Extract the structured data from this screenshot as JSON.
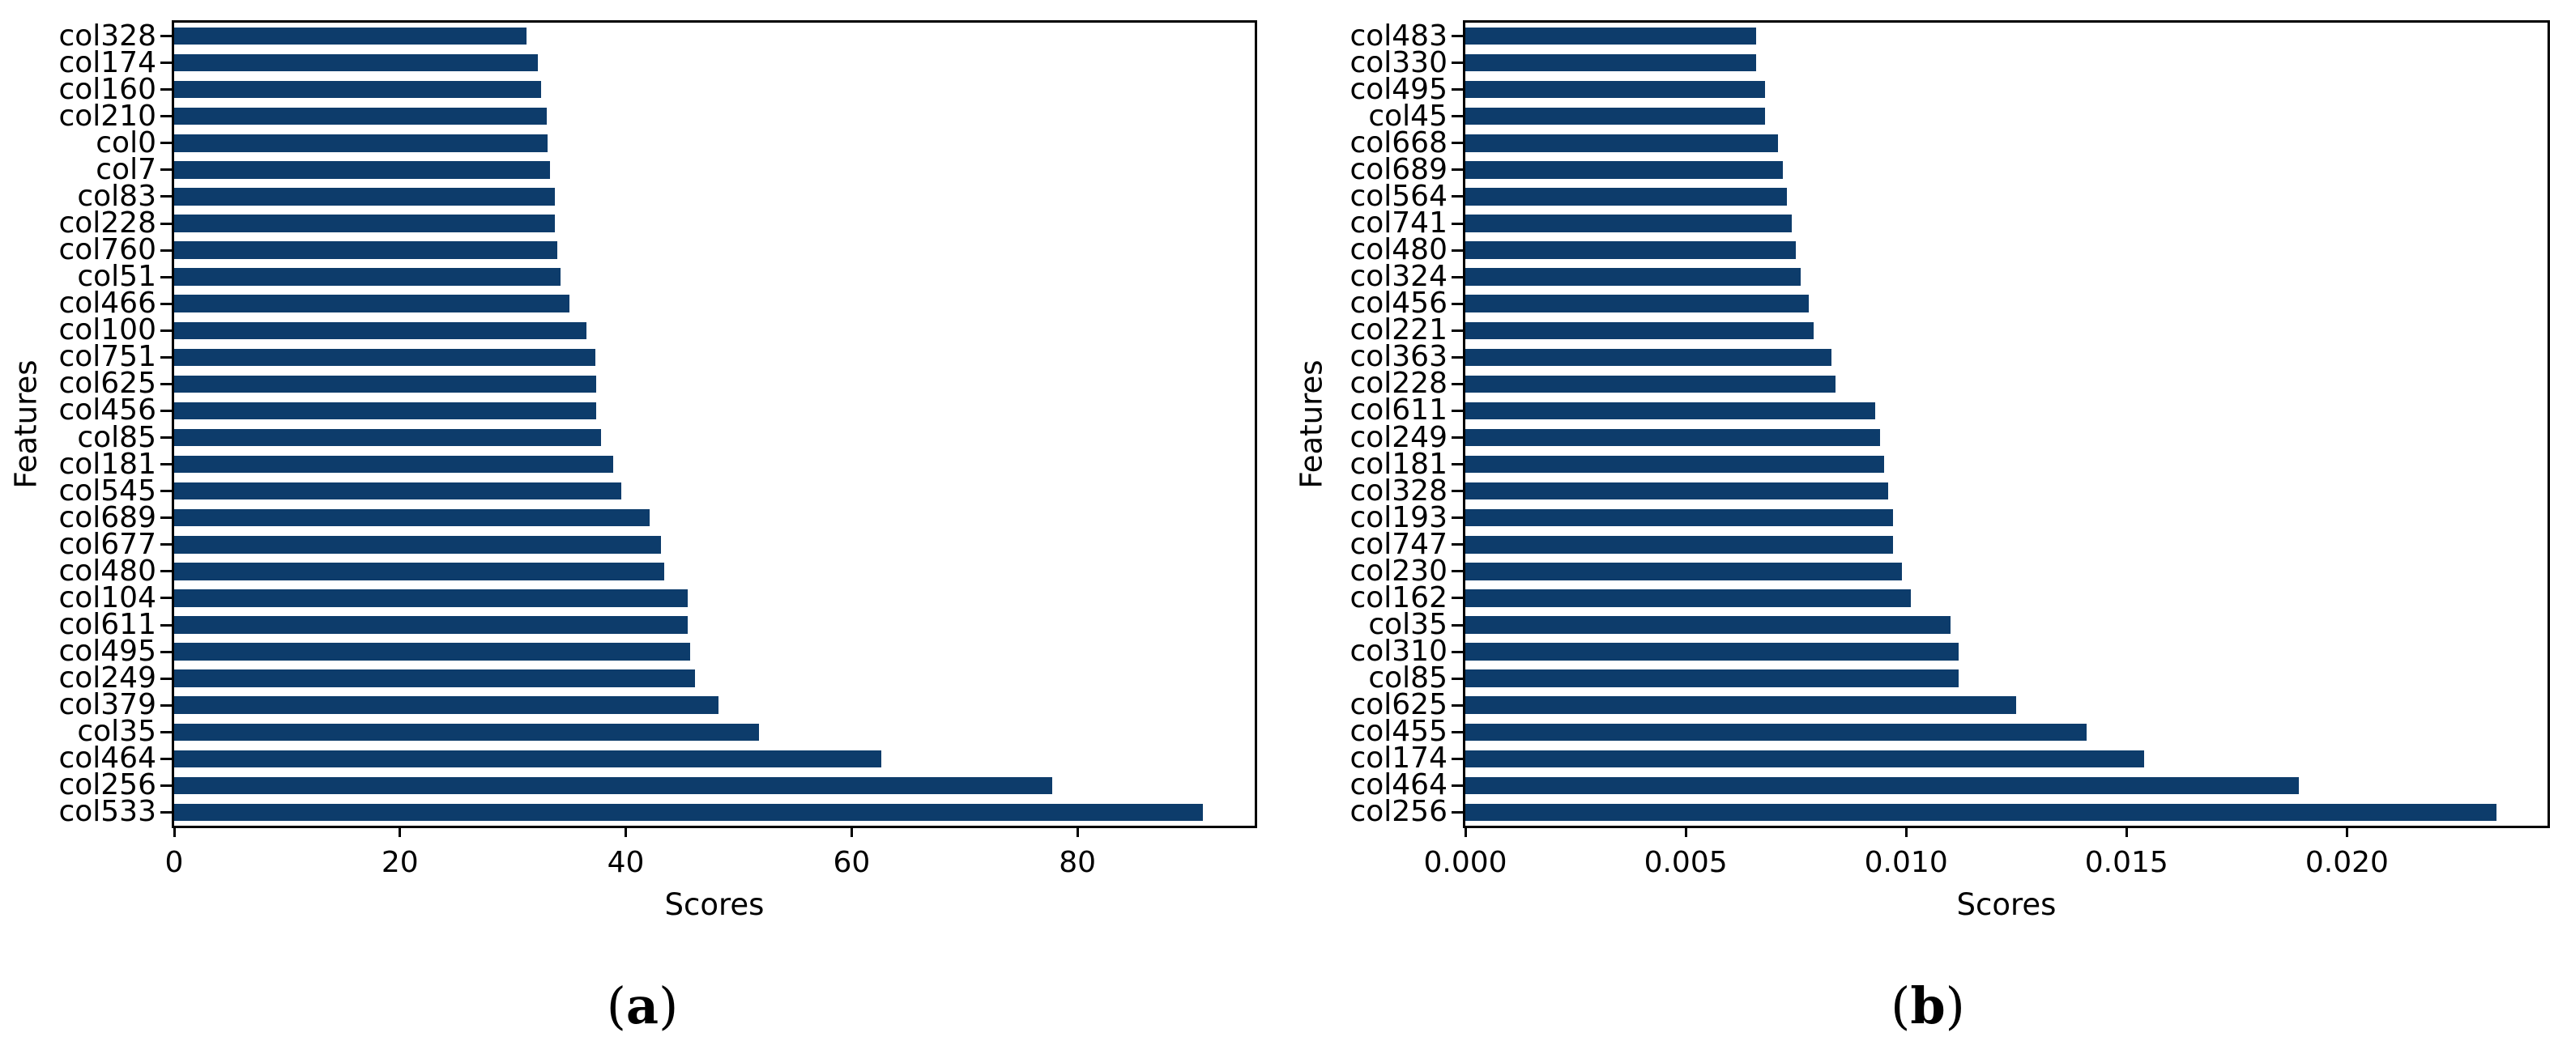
{
  "figure": {
    "background": "#ffffff",
    "bar_color": "#0d3c6b",
    "axis_color": "#000000"
  },
  "chart_data": [
    {
      "type": "bar",
      "orientation": "horizontal",
      "panel": "a",
      "caption": "(a)",
      "xlabel": "Scores",
      "ylabel": "Features",
      "grid": false,
      "legend_position": "none",
      "xlim": [
        0,
        95.7
      ],
      "xticks": [
        0,
        20,
        40,
        60,
        80
      ],
      "xtick_labels": [
        "0",
        "20",
        "40",
        "60",
        "80"
      ],
      "categories": [
        "col328",
        "col174",
        "col160",
        "col210",
        "col0",
        "col7",
        "col83",
        "col228",
        "col760",
        "col51",
        "col466",
        "col100",
        "col751",
        "col625",
        "col456",
        "col85",
        "col181",
        "col545",
        "col689",
        "col677",
        "col480",
        "col104",
        "col611",
        "col495",
        "col249",
        "col379",
        "col35",
        "col464",
        "col256",
        "col533"
      ],
      "values": [
        31.2,
        32.2,
        32.5,
        33.0,
        33.1,
        33.3,
        33.7,
        33.7,
        33.9,
        34.2,
        35.0,
        36.5,
        37.3,
        37.4,
        37.4,
        37.8,
        38.9,
        39.6,
        42.1,
        43.1,
        43.4,
        45.5,
        45.5,
        45.7,
        46.1,
        48.2,
        51.8,
        62.6,
        77.8,
        91.1
      ]
    },
    {
      "type": "bar",
      "orientation": "horizontal",
      "panel": "b",
      "caption": "(b)",
      "xlabel": "Scores",
      "ylabel": "Features",
      "grid": false,
      "legend_position": "none",
      "xlim": [
        0,
        0.02455
      ],
      "xticks": [
        0,
        0.005,
        0.01,
        0.015,
        0.02
      ],
      "xtick_labels": [
        "0.000",
        "0.005",
        "0.010",
        "0.015",
        "0.020"
      ],
      "categories": [
        "col483",
        "col330",
        "col495",
        "col45",
        "col668",
        "col689",
        "col564",
        "col741",
        "col480",
        "col324",
        "col456",
        "col221",
        "col363",
        "col228",
        "col611",
        "col249",
        "col181",
        "col328",
        "col193",
        "col747",
        "col230",
        "col162",
        "col35",
        "col310",
        "col85",
        "col625",
        "col455",
        "col174",
        "col464",
        "col256"
      ],
      "values": [
        0.0066,
        0.0066,
        0.0068,
        0.0068,
        0.0071,
        0.0072,
        0.0073,
        0.0074,
        0.0075,
        0.0076,
        0.0078,
        0.0079,
        0.0083,
        0.0084,
        0.0093,
        0.0094,
        0.0095,
        0.0096,
        0.0097,
        0.0097,
        0.0099,
        0.0101,
        0.011,
        0.0112,
        0.0112,
        0.0125,
        0.0141,
        0.0154,
        0.0189,
        0.0234
      ]
    }
  ]
}
